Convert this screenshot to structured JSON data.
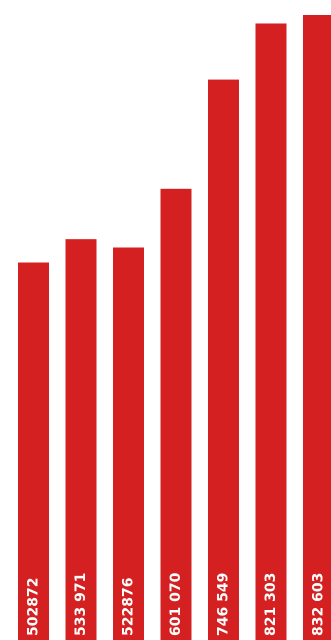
{
  "chart_data": {
    "type": "bar",
    "values": [
      502872,
      533971,
      522876,
      601070,
      746549,
      821303,
      832603
    ],
    "value_labels": [
      "502872",
      "533 971",
      "522876",
      "601 070",
      "746 549",
      "821 303",
      "832 603"
    ],
    "color": "#d42020"
  }
}
